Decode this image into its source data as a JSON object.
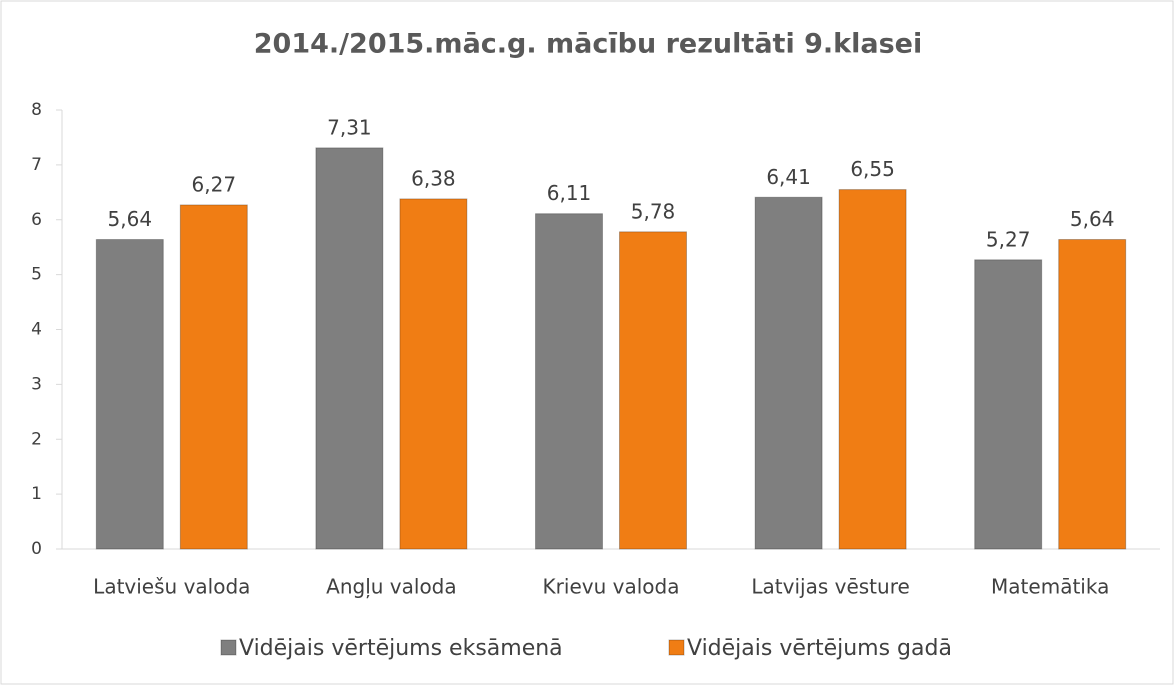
{
  "chart_data": {
    "type": "bar",
    "title": "2014./2015.māc.g. mācību rezultāti 9.klasei",
    "categories": [
      "Latviešu valoda",
      "Angļu valoda",
      "Krievu valoda",
      "Latvijas vēsture",
      "Matemātika"
    ],
    "series": [
      {
        "name": "Vidējais vērtējums eksāmenā",
        "color": "#7f7f7f",
        "values": [
          5.64,
          7.31,
          6.11,
          6.41,
          5.27
        ],
        "value_labels": [
          "5,64",
          "7,31",
          "6,11",
          "6,41",
          "5,27"
        ]
      },
      {
        "name": "Vidējais vērtējums gadā",
        "color": "#f07d14",
        "values": [
          6.27,
          6.38,
          5.78,
          6.55,
          5.64
        ],
        "value_labels": [
          "6,27",
          "6,38",
          "5,78",
          "6,55",
          "5,64"
        ]
      }
    ],
    "ylim": [
      0,
      8
    ],
    "yticks": [
      0,
      1,
      2,
      3,
      4,
      5,
      6,
      7,
      8
    ],
    "grid": false,
    "legend": "bottom"
  }
}
